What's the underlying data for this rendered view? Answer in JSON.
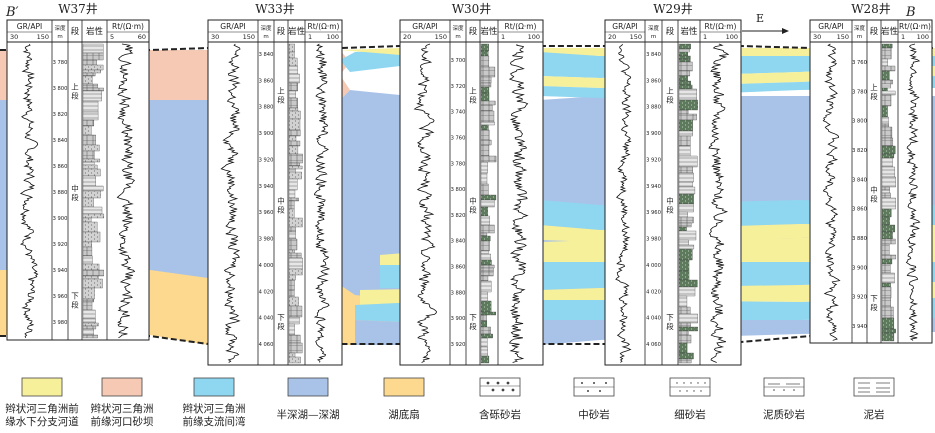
{
  "section": {
    "start_label": "B′",
    "end_label": "B"
  },
  "direction": "E",
  "wells": [
    {
      "name": "W37井",
      "gr_header": "GR/API",
      "gr_range": [
        "30",
        "150"
      ],
      "depth_header": "深度/m",
      "seg_header": "段",
      "lith_header": "岩性",
      "rt_header": "Rt/(Ω·m)",
      "rt_range": [
        "5",
        "60"
      ],
      "depth_ticks": [
        "3 780",
        "3 800",
        "3 820",
        "3 840",
        "3 860",
        "3 880",
        "3 900",
        "3 920",
        "3 940",
        "3 960",
        "3 980"
      ],
      "segments": [
        "上段",
        "中段",
        "下段"
      ]
    },
    {
      "name": "W33井",
      "gr_header": "GR/API",
      "gr_range": [
        "30",
        "150"
      ],
      "depth_header": "深度/m",
      "seg_header": "段",
      "lith_header": "岩性",
      "rt_header": "Rt/(Ω·m)",
      "rt_range": [
        "1",
        "100"
      ],
      "depth_ticks": [
        "3 840",
        "3 860",
        "3 880",
        "3 900",
        "3 920",
        "3 940",
        "3 960",
        "3 980",
        "4 000",
        "4 020",
        "4 040",
        "4 060"
      ],
      "segments": [
        "上段",
        "中段",
        "下段"
      ]
    },
    {
      "name": "W30井",
      "gr_header": "GR/API",
      "gr_range": [
        "20",
        "150"
      ],
      "depth_header": "深度/m",
      "seg_header": "段",
      "lith_header": "岩性",
      "rt_header": "Rt/(Ω·m)",
      "rt_range": [
        "1",
        "100"
      ],
      "depth_ticks": [
        "3 700",
        "3 720",
        "3 740",
        "3 760",
        "3 780",
        "3 800",
        "3 820",
        "3 840",
        "3 860",
        "3 880",
        "3 900",
        "3 920"
      ],
      "segments": [
        "上段",
        "中段",
        "下段"
      ]
    },
    {
      "name": "W29井",
      "gr_header": "GR/API",
      "gr_range": [
        "20",
        "150"
      ],
      "depth_header": "深度/m",
      "seg_header": "段",
      "lith_header": "岩性",
      "rt_header": "Rt/(Ω·m)",
      "rt_range": [
        "1",
        "100"
      ],
      "depth_ticks": [
        "3 840",
        "3 860",
        "3 880",
        "3 900",
        "3 920",
        "3 940",
        "3 960",
        "3 980",
        "4 000",
        "4 020",
        "4 040",
        "4 060"
      ],
      "segments": [
        "上段",
        "中段",
        "下段"
      ]
    },
    {
      "name": "W28井",
      "gr_header": "GR/API",
      "gr_range": [
        "30",
        "150"
      ],
      "depth_header": "深度/m",
      "seg_header": "段",
      "lith_header": "岩性",
      "rt_header": "Rt/(Ω·m)",
      "rt_range": [
        "1",
        "100"
      ],
      "depth_ticks": [
        "3 760",
        "3 780",
        "3 800",
        "3 820",
        "3 840",
        "3 860",
        "3 880",
        "3 900",
        "3 920",
        "3 940"
      ],
      "segments": [
        "上段",
        "中段",
        "下段"
      ]
    }
  ],
  "colors": {
    "yellow": "#f7f09a",
    "pink": "#f6c9b4",
    "cyan": "#8fd6f0",
    "blue": "#a9c3e8",
    "orange": "#fcd98e",
    "lith_dark": "#5d7a5d",
    "lith_light": "#c8c8c8"
  },
  "legend": [
    {
      "label": "辫状河三角洲前缘水下分支河道",
      "color": "#f7f09a",
      "kind": "color"
    },
    {
      "label": "辫状河三角洲前缘河口砂坝",
      "color": "#f6c9b4",
      "kind": "color"
    },
    {
      "label": "辫状河三角洲前缘支流间湾",
      "color": "#8fd6f0",
      "kind": "color"
    },
    {
      "label": "半深湖—深湖",
      "color": "#a9c3e8",
      "kind": "color"
    },
    {
      "label": "湖底扇",
      "color": "#fcd98e",
      "kind": "color"
    },
    {
      "label": "含砾砂岩",
      "kind": "pebbly-sandstone"
    },
    {
      "label": "中砂岩",
      "kind": "medium-sandstone"
    },
    {
      "label": "细砂岩",
      "kind": "fine-sandstone"
    },
    {
      "label": "泥质砂岩",
      "kind": "muddy-sandstone"
    },
    {
      "label": "泥岩",
      "kind": "mudstone"
    }
  ]
}
